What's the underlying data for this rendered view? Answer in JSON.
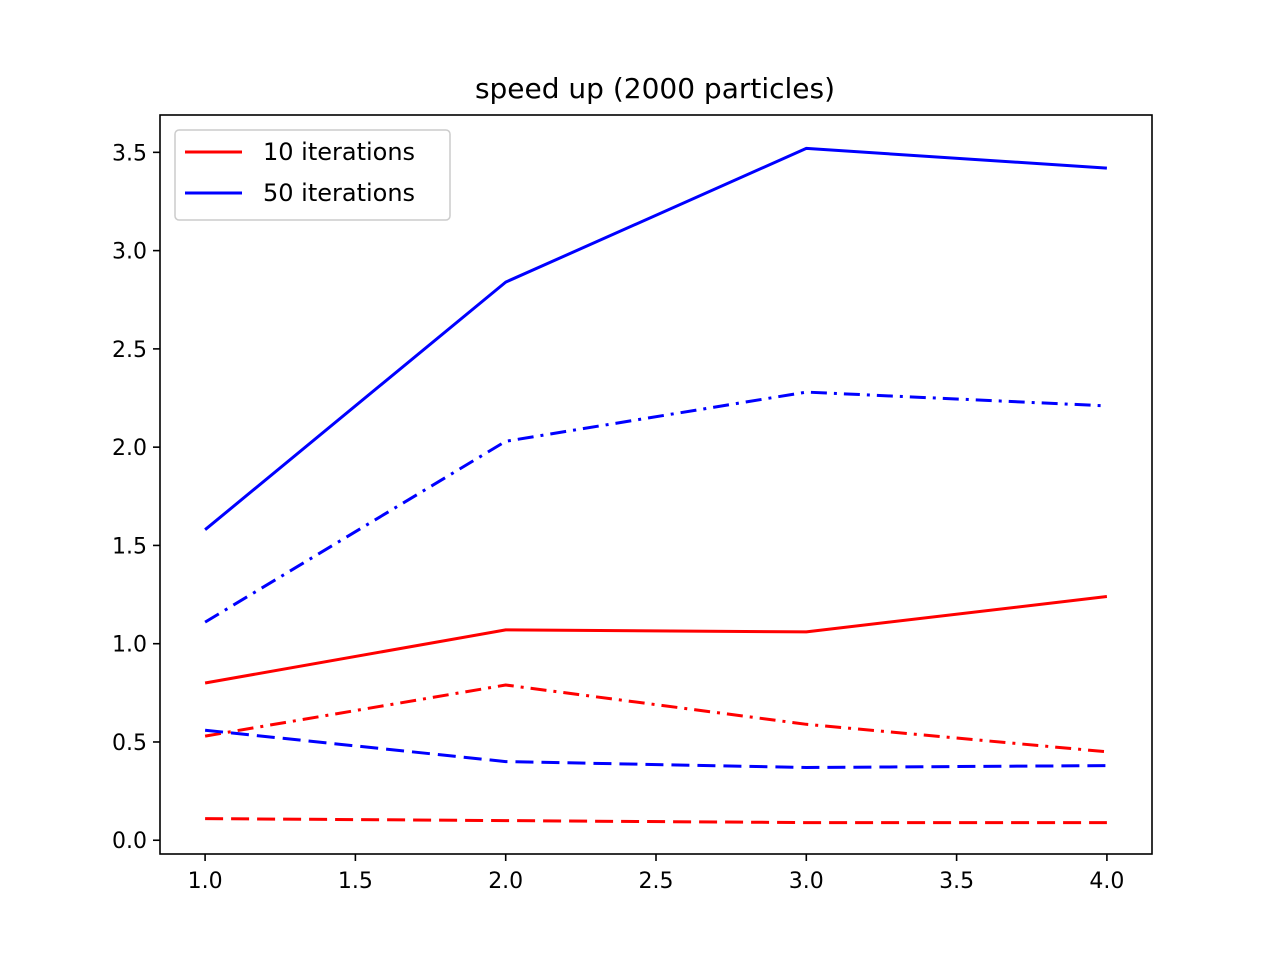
{
  "chart_data": {
    "type": "line",
    "title": "speed up (2000 particles)",
    "xlabel": "",
    "ylabel": "",
    "xlim": [
      0.85,
      4.15
    ],
    "ylim": [
      -0.07,
      3.69
    ],
    "xticks": [
      1.0,
      1.5,
      2.0,
      2.5,
      3.0,
      3.5,
      4.0
    ],
    "xtick_labels": [
      "1.0",
      "1.5",
      "2.0",
      "2.5",
      "3.0",
      "3.5",
      "4.0"
    ],
    "yticks": [
      0.0,
      0.5,
      1.0,
      1.5,
      2.0,
      2.5,
      3.0,
      3.5
    ],
    "ytick_labels": [
      "0.0",
      "0.5",
      "1.0",
      "1.5",
      "2.0",
      "2.5",
      "3.0",
      "3.5"
    ],
    "grid": false,
    "legend_position": "top-left",
    "legend": [
      {
        "label": "10 iterations",
        "color": "#ff0000"
      },
      {
        "label": "50 iterations",
        "color": "#0000ff"
      }
    ],
    "x": [
      1,
      2,
      3,
      4
    ],
    "series": [
      {
        "group": "50 iterations",
        "color": "#0000ff",
        "style": "solid",
        "values": [
          1.58,
          2.84,
          3.52,
          3.42
        ]
      },
      {
        "group": "50 iterations",
        "color": "#0000ff",
        "style": "dashdot",
        "values": [
          1.11,
          2.03,
          2.28,
          2.21
        ]
      },
      {
        "group": "10 iterations",
        "color": "#ff0000",
        "style": "solid",
        "values": [
          0.8,
          1.07,
          1.06,
          1.24
        ]
      },
      {
        "group": "10 iterations",
        "color": "#ff0000",
        "style": "dashdot",
        "values": [
          0.53,
          0.79,
          0.59,
          0.45
        ]
      },
      {
        "group": "50 iterations",
        "color": "#0000ff",
        "style": "dashed",
        "values": [
          0.56,
          0.4,
          0.37,
          0.38
        ]
      },
      {
        "group": "10 iterations",
        "color": "#ff0000",
        "style": "dashed",
        "values": [
          0.11,
          0.1,
          0.09,
          0.09
        ]
      }
    ]
  }
}
